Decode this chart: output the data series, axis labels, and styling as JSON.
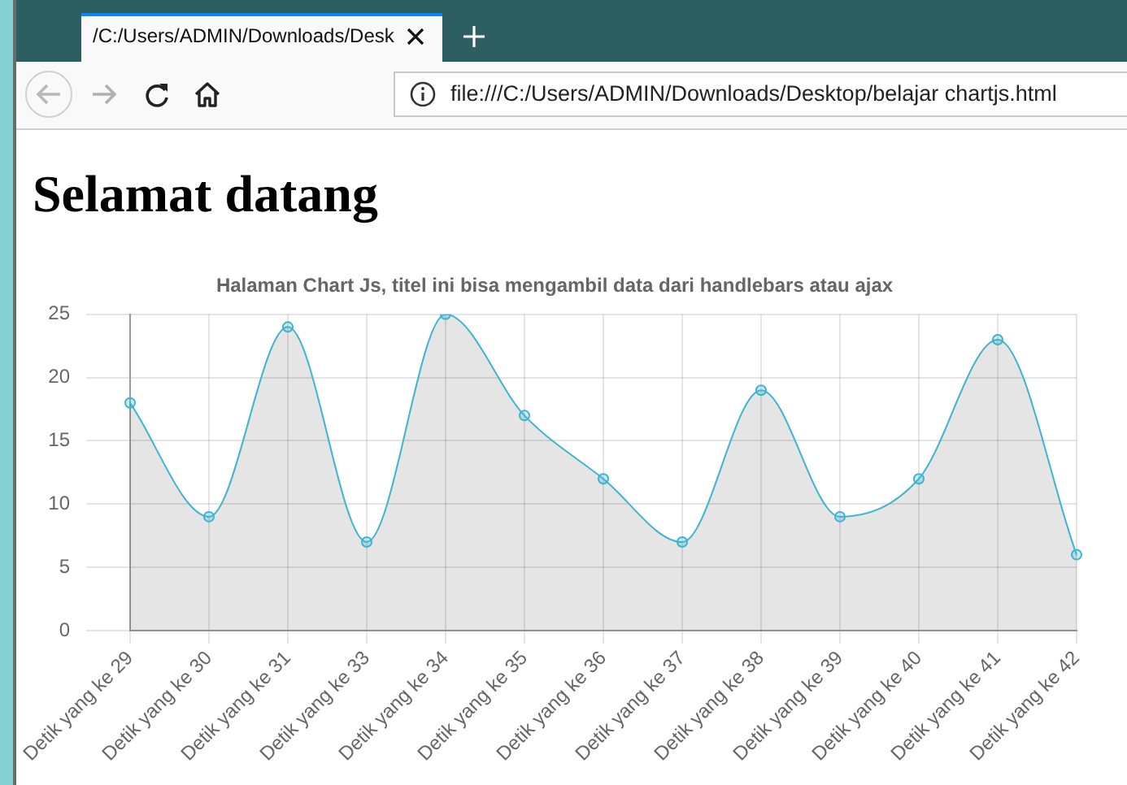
{
  "chart_data": {
    "type": "area",
    "title": "Selamat datang",
    "subtitle": "Halaman Chart Js, titel ini bisa mengambil data dari handlebars atau ajax",
    "annotations": [
      "/C:/Users/ADMIN/Downloads/Desk",
      "file:///C:/Users/ADMIN/Downloads/Desktop/belajar chartjs.html"
    ],
    "categories": [
      "Detik yang ke 29",
      "Detik yang ke 30",
      "Detik yang ke 31",
      "Detik yang ke 33",
      "Detik yang ke 34",
      "Detik yang ke 35",
      "Detik yang ke 36",
      "Detik yang ke 37",
      "Detik yang ke 38",
      "Detik yang ke 39",
      "Detik yang ke 40",
      "Detik yang ke 41",
      "Detik yang ke 42"
    ],
    "series": [
      {
        "color": "#3cb4d2",
        "values": [
          18,
          9,
          24,
          7,
          25,
          17,
          12,
          7,
          19,
          9,
          12,
          23,
          6
        ]
      }
    ],
    "ylim": [
      0,
      25
    ],
    "yticks": [
      0,
      5,
      10,
      15,
      20,
      25
    ],
    "grid": true,
    "legend": false,
    "marker": "circle",
    "line_style": "solid"
  }
}
